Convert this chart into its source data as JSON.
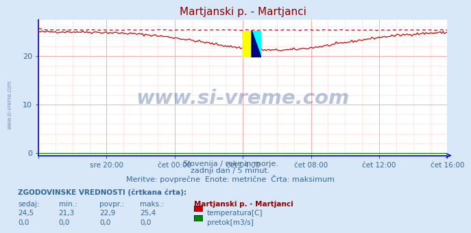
{
  "title": "Martjanski p. - Martjanci",
  "title_color": "#880000",
  "bg_color": "#d8e8f8",
  "plot_bg_color": "#ffffff",
  "axis_color": "#0000cc",
  "grid_major_color": "#ffaaaa",
  "grid_minor_color": "#ffd8d8",
  "text_color": "#336699",
  "ylabel_ticks": [
    0,
    10,
    20
  ],
  "ylim": [
    -0.5,
    27.5
  ],
  "x_tick_labels": [
    "",
    "sre 20:00",
    "čet 00:00",
    "čet 04:00",
    "čet 08:00",
    "čet 12:00",
    "čet 16:00"
  ],
  "x_tick_positions": [
    0.0,
    0.1667,
    0.3333,
    0.5,
    0.6667,
    0.8333,
    1.0
  ],
  "temp_line_color": "#cc0000",
  "flow_line_color": "#008800",
  "subtitle1": "Slovenija / reke in morje.",
  "subtitle2": "zadnji dan / 5 minut.",
  "subtitle3": "Meritve: povprečne  Enote: metrične  Črta: maksimum",
  "legend_title": "Martjanski p. - Martjanci",
  "legend_label1": "temperatura[C]",
  "legend_label2": "pretok[m3/s]",
  "hist_label": "ZGODOVINSKE VREDNOSTI (črtkana črta):",
  "col_headers": [
    "sedaj:",
    "min.:",
    "povpr.:",
    "maks.:"
  ],
  "temp_row": [
    "24,5",
    "21,3",
    "22,9",
    "25,4"
  ],
  "flow_row": [
    "0,0",
    "0,0",
    "0,0",
    "0,0"
  ],
  "watermark_text": "www.si-vreme.com",
  "watermark_color": "#1a3a8a",
  "logo_yellow": "#ffff00",
  "logo_cyan": "#00ffff",
  "logo_blue": "#000080",
  "logo_darkblue": "#000033"
}
